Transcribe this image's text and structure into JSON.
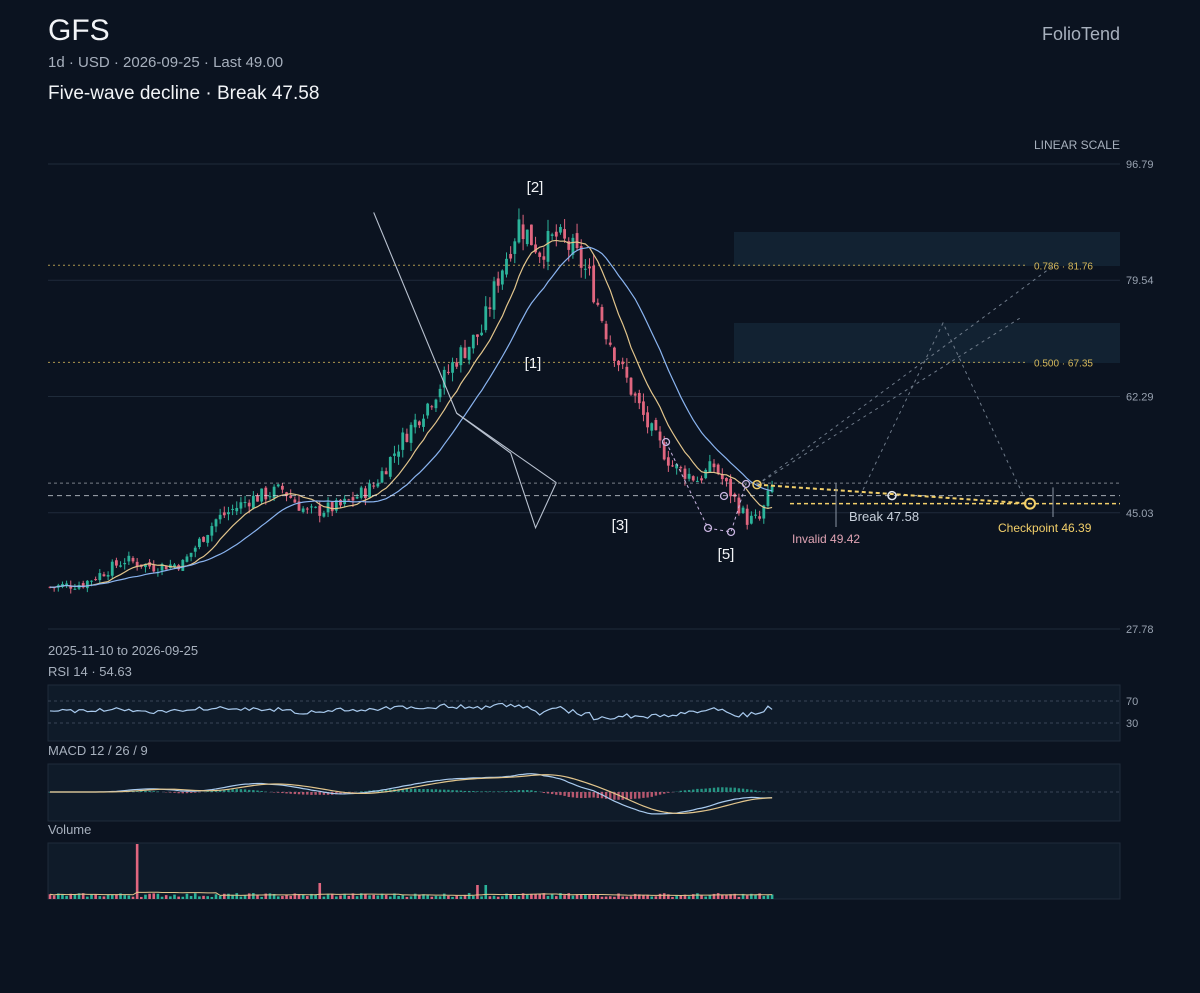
{
  "header": {
    "ticker": "GFS",
    "meta": "1d · USD · 2026-09-25 · Last 49.00",
    "headline": "Five-wave decline · Break 47.58",
    "brand": "FolioTend"
  },
  "colors": {
    "background": "#0b1320",
    "up": "#2bb39a",
    "down": "#e0667f",
    "ma_fast": "#e2c58c",
    "ma_slow": "#8ab4f0",
    "fib": "#d6b85a",
    "break_line": "#e6eaf0",
    "checkpoint": "#f2cf6a",
    "wave_line": "#b9c2d0"
  },
  "chart_data": {
    "type": "candlestick",
    "scale_label": "LINEAR SCALE",
    "date_range": "2025-11-10 to 2026-09-25",
    "y_ticks": [
      96.79,
      79.54,
      62.29,
      45.03,
      27.78
    ],
    "ylim": [
      27.78,
      96.79
    ],
    "bar_count": 175,
    "wave_labels": [
      {
        "label": "[1]",
        "bar": 81,
        "price": 65.0
      },
      {
        "label": "[2]",
        "bar": 81,
        "price": 91.0
      },
      {
        "label": "[3]",
        "bar": 101,
        "price": 45.2
      },
      {
        "label": "[5]",
        "bar": 118,
        "price": 41.6
      }
    ],
    "wave_path": [
      {
        "bar": 78,
        "price": 89.6
      },
      {
        "bar": 98,
        "price": 59.8
      },
      {
        "bar": 111,
        "price": 53.9
      },
      {
        "bar": 117,
        "price": 42.8
      },
      {
        "bar": 122,
        "price": 49.5
      }
    ],
    "fib_levels": [
      {
        "label": "0.786 · 81.76",
        "price": 81.76
      },
      {
        "label": "0.500 · 67.35",
        "price": 67.35
      }
    ],
    "break_level": {
      "label": "Break 47.58",
      "price": 47.58
    },
    "invalid_level": {
      "label": "Invalid 49.42",
      "price": 49.42
    },
    "checkpoint": {
      "label": "Checkpoint 46.39",
      "price": 46.39
    },
    "projections": [
      {
        "bar": 160,
        "price": 81.76
      },
      {
        "bar": 152,
        "price": 74.0
      }
    ],
    "rsi": {
      "label": "RSI 14 · 54.63",
      "value": 54.63,
      "levels": [
        "70",
        "30"
      ]
    },
    "macd": {
      "label": "MACD 12 / 26 / 9"
    },
    "volume": {
      "label": "Volume"
    }
  }
}
